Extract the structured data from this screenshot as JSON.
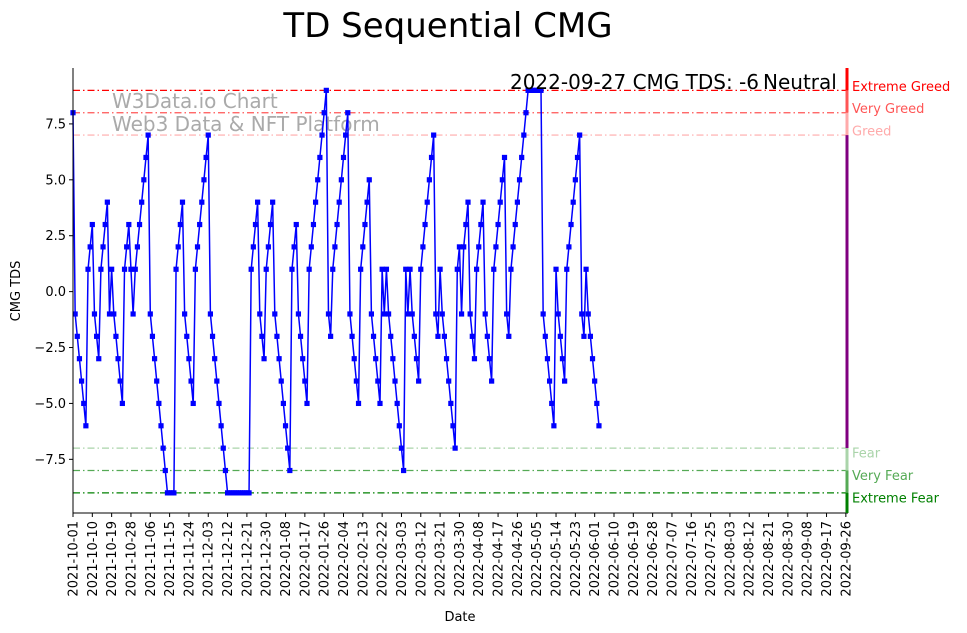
{
  "chart_data": {
    "type": "line",
    "title": "TD Sequential CMG",
    "xlabel": "Date",
    "ylabel": "CMG TDS",
    "ylim": [
      -9.9,
      10.0
    ],
    "yticks": [
      -7.5,
      -5.0,
      -2.5,
      0.0,
      2.5,
      5.0,
      7.5
    ],
    "ytick_labels": [
      "−7.5",
      "−5.0",
      "−2.5",
      "0.0",
      "2.5",
      "5.0",
      "7.5"
    ],
    "x_range_days": [
      0,
      361
    ],
    "xticks": [
      {
        "day": 0,
        "label": "2021-10-01"
      },
      {
        "day": 9,
        "label": "2021-10-10"
      },
      {
        "day": 18,
        "label": "2021-10-19"
      },
      {
        "day": 27,
        "label": "2021-10-28"
      },
      {
        "day": 36,
        "label": "2021-11-06"
      },
      {
        "day": 45,
        "label": "2021-11-15"
      },
      {
        "day": 54,
        "label": "2021-11-24"
      },
      {
        "day": 63,
        "label": "2021-12-03"
      },
      {
        "day": 72,
        "label": "2021-12-12"
      },
      {
        "day": 81,
        "label": "2021-12-21"
      },
      {
        "day": 90,
        "label": "2021-12-30"
      },
      {
        "day": 99,
        "label": "2022-01-08"
      },
      {
        "day": 108,
        "label": "2022-01-17"
      },
      {
        "day": 117,
        "label": "2022-01-26"
      },
      {
        "day": 126,
        "label": "2022-02-04"
      },
      {
        "day": 135,
        "label": "2022-02-13"
      },
      {
        "day": 144,
        "label": "2022-02-22"
      },
      {
        "day": 153,
        "label": "2022-03-03"
      },
      {
        "day": 162,
        "label": "2022-03-12"
      },
      {
        "day": 171,
        "label": "2022-03-21"
      },
      {
        "day": 180,
        "label": "2022-03-30"
      },
      {
        "day": 189,
        "label": "2022-04-08"
      },
      {
        "day": 198,
        "label": "2022-04-17"
      },
      {
        "day": 207,
        "label": "2022-04-26"
      },
      {
        "day": 216,
        "label": "2022-05-05"
      },
      {
        "day": 225,
        "label": "2022-05-14"
      },
      {
        "day": 234,
        "label": "2022-05-23"
      },
      {
        "day": 243,
        "label": "2022-06-01"
      },
      {
        "day": 252,
        "label": "2022-06-10"
      },
      {
        "day": 261,
        "label": "2022-06-19"
      },
      {
        "day": 270,
        "label": "2022-06-28"
      },
      {
        "day": 279,
        "label": "2022-07-07"
      },
      {
        "day": 288,
        "label": "2022-07-16"
      },
      {
        "day": 297,
        "label": "2022-07-25"
      },
      {
        "day": 306,
        "label": "2022-08-03"
      },
      {
        "day": 315,
        "label": "2022-08-12"
      },
      {
        "day": 324,
        "label": "2022-08-21"
      },
      {
        "day": 333,
        "label": "2022-08-30"
      },
      {
        "day": 342,
        "label": "2022-09-08"
      },
      {
        "day": 351,
        "label": "2022-09-17"
      },
      {
        "day": 360,
        "label": "2022-09-26"
      }
    ],
    "series": [
      {
        "name": "CMG TDS",
        "color": "#0000ff",
        "values": [
          8,
          -1,
          -2,
          -3,
          -4,
          -5,
          -6,
          1,
          2,
          3,
          -1,
          -2,
          -3,
          1,
          2,
          3,
          4,
          -1,
          1,
          -1,
          -2,
          -3,
          -4,
          -5,
          1,
          2,
          3,
          1,
          -1,
          1,
          2,
          3,
          4,
          5,
          6,
          7,
          -1,
          -2,
          -3,
          -4,
          -5,
          -6,
          -7,
          -8,
          -9,
          -9,
          -9,
          -9,
          1,
          2,
          3,
          4,
          -1,
          -2,
          -3,
          -4,
          -5,
          1,
          2,
          3,
          4,
          5,
          6,
          7,
          -1,
          -2,
          -3,
          -4,
          -5,
          -6,
          -7,
          -8,
          -9,
          -9,
          -9,
          -9,
          -9,
          -9,
          -9,
          -9,
          -9,
          -9,
          -9,
          1,
          2,
          3,
          4,
          -1,
          -2,
          -3,
          1,
          2,
          3,
          4,
          -1,
          -2,
          -3,
          -4,
          -5,
          -6,
          -7,
          -8,
          1,
          2,
          3,
          -1,
          -2,
          -3,
          -4,
          -5,
          1,
          2,
          3,
          4,
          5,
          6,
          7,
          8,
          9,
          -1,
          -2,
          1,
          2,
          3,
          4,
          5,
          6,
          7,
          8,
          -1,
          -2,
          -3,
          -4,
          -5,
          1,
          2,
          3,
          4,
          5,
          -1,
          -2,
          -3,
          -4,
          -5,
          1,
          -1,
          1,
          -1,
          -2,
          -3,
          -4,
          -5,
          -6,
          -7,
          -8,
          1,
          -1,
          1,
          -1,
          -2,
          -3,
          -4,
          1,
          2,
          3,
          4,
          5,
          6,
          7,
          -1,
          -2,
          1,
          -1,
          -2,
          -3,
          -4,
          -5,
          -6,
          -7,
          1,
          2,
          -1,
          2,
          3,
          4,
          -1,
          -2,
          -3,
          1,
          2,
          3,
          4,
          -1,
          -2,
          -3,
          -4,
          1,
          2,
          3,
          4,
          5,
          6,
          -1,
          -2,
          1,
          2,
          3,
          4,
          5,
          6,
          7,
          8,
          9,
          9,
          9,
          9,
          9,
          9,
          9,
          -1,
          -2,
          -3,
          -4,
          -5,
          -6,
          1,
          -1,
          -2,
          -3,
          -4,
          1,
          2,
          3,
          4,
          5,
          6,
          7,
          -1,
          -2,
          1,
          -1,
          -2,
          -3,
          -4,
          -5,
          -6
        ]
      }
    ],
    "zones": [
      {
        "name": "Extreme Greed",
        "y": 9.0,
        "color": "#ff0000"
      },
      {
        "name": "Very Greed",
        "y": 8.0,
        "color": "#ff5555"
      },
      {
        "name": "Greed",
        "y": 7.0,
        "color": "#ffaaaa"
      },
      {
        "name": "Fear",
        "y": -7.0,
        "color": "#aad4aa"
      },
      {
        "name": "Very Fear",
        "y": -8.0,
        "color": "#55aa55"
      },
      {
        "name": "Extreme Fear",
        "y": -9.0,
        "color": "#008000"
      }
    ],
    "watermark_lines": [
      "W3Data.io Chart",
      "Web3 Data & NFT Platform"
    ],
    "status": {
      "prefix": "2022-09-27 CMG TDS: -6",
      "label": "Neutral",
      "label_color": "#800080"
    },
    "line_color": "#0000ff"
  }
}
